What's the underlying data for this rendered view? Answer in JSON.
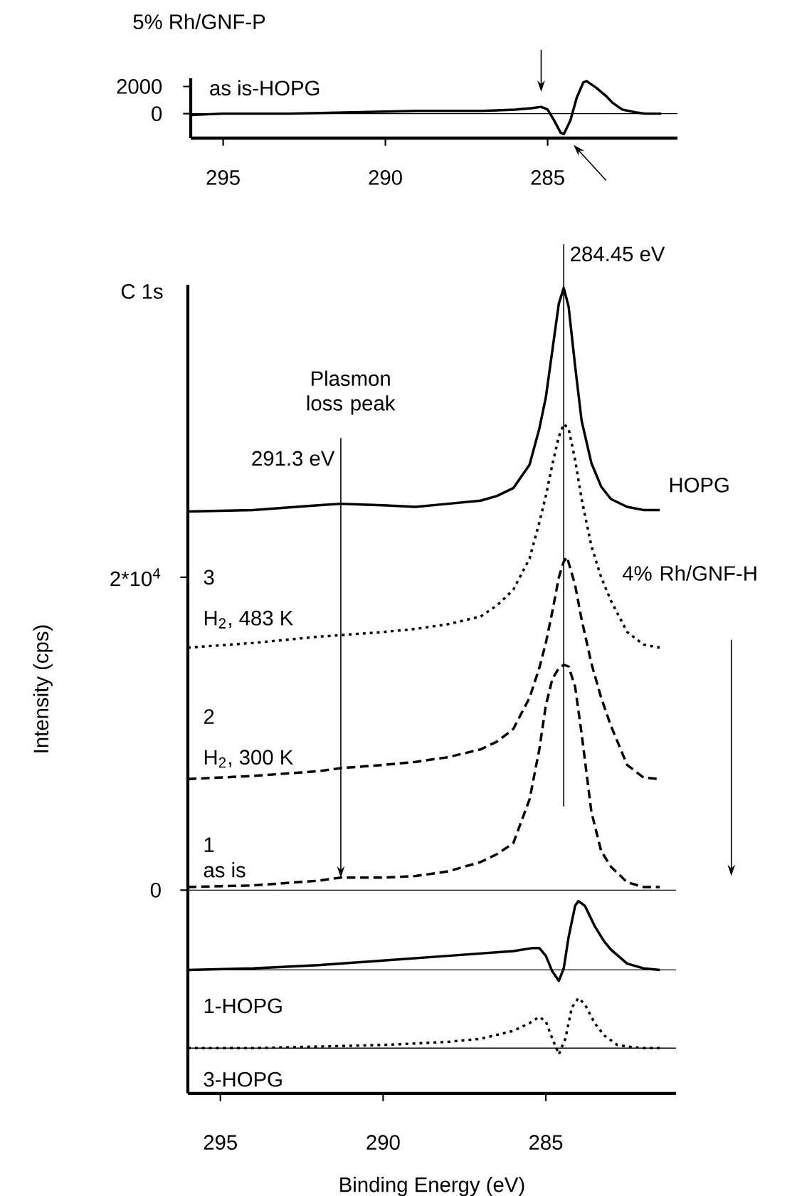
{
  "chart_data": [
    {
      "type": "line",
      "title": "5% Rh/GNF-P",
      "xlim": [
        296,
        281
      ],
      "ylim": [
        -1800,
        2600
      ],
      "xticks": [
        295,
        290,
        285
      ],
      "yticks": [
        0,
        2000
      ],
      "marker": "none",
      "series": [
        {
          "name": "as is-HOPG",
          "color": "#000000",
          "line_style": "solid",
          "x": [
            296,
            295,
            293,
            291,
            289,
            287,
            286,
            285.5,
            285.2,
            285,
            284.8,
            284.6,
            284.5,
            284.3,
            284.1,
            283.9,
            283.8,
            283.5,
            283.2,
            283,
            282.7,
            282.3,
            282,
            281.5
          ],
          "values": [
            -100,
            0,
            0,
            100,
            200,
            200,
            300,
            400,
            500,
            300,
            -500,
            -1400,
            -1500,
            -500,
            1200,
            2300,
            2400,
            1900,
            1300,
            800,
            300,
            100,
            0,
            0
          ]
        }
      ],
      "ref_lines": [
        {
          "axis": "y",
          "value": 0,
          "color": "#000000"
        }
      ]
    },
    {
      "type": "line",
      "title": "C 1s",
      "xlabel": "Binding Energy (eV)",
      "ylabel": "Intensity (cps)",
      "xlim": [
        296,
        281
      ],
      "ylim": [
        -13000,
        38700
      ],
      "xticks": [
        295,
        290,
        285
      ],
      "yticks": [
        0,
        {
          "value": 20000,
          "label": "2*10$^{4}$"
        }
      ],
      "marker": "none",
      "series": [
        {
          "name": "HOPG",
          "color": "#000000",
          "line_style": "solid",
          "x": [
            296,
            294,
            292,
            291.3,
            290,
            289,
            288,
            287,
            286.5,
            286,
            285.5,
            285.2,
            285,
            284.8,
            284.6,
            284.45,
            284.3,
            284.1,
            283.9,
            283.6,
            283.3,
            283,
            282.5,
            282,
            281.5
          ],
          "values": [
            24200,
            24300,
            24600,
            24700,
            24600,
            24500,
            24700,
            24900,
            25200,
            25700,
            27200,
            29500,
            31500,
            34500,
            37500,
            38500,
            37300,
            33500,
            30000,
            27300,
            25800,
            25000,
            24500,
            24300,
            24300
          ]
        },
        {
          "name": "3",
          "color": "#000000",
          "line_style": "dotted",
          "x": [
            296,
            294,
            292,
            291.3,
            290,
            289,
            288,
            287,
            286.5,
            286,
            285.5,
            285.2,
            285,
            284.8,
            284.6,
            284.45,
            284.3,
            284.1,
            283.9,
            283.6,
            283.3,
            283,
            282.5,
            282,
            281.5
          ],
          "values": [
            15500,
            15800,
            16200,
            16300,
            16500,
            16700,
            17000,
            17500,
            18200,
            19200,
            21200,
            23500,
            25200,
            27200,
            29000,
            29800,
            29500,
            27500,
            25000,
            22000,
            20000,
            18500,
            16500,
            15700,
            15500
          ]
        },
        {
          "name": "2",
          "color": "#000000",
          "line_style": "dashed",
          "x": [
            296,
            294,
            292,
            291.3,
            290,
            289,
            288,
            287,
            286.5,
            286,
            285.5,
            285.2,
            285,
            284.8,
            284.6,
            284.45,
            284.35,
            284.1,
            283.9,
            283.6,
            283.3,
            283,
            282.5,
            282,
            281.5
          ],
          "values": [
            7100,
            7300,
            7600,
            7800,
            8000,
            8200,
            8500,
            9000,
            9500,
            10300,
            12300,
            14200,
            15800,
            17800,
            20000,
            21000,
            21300,
            19500,
            17300,
            14500,
            12300,
            10500,
            8000,
            7200,
            7100
          ]
        },
        {
          "name": "1",
          "color": "#000000",
          "line_style": "dashed",
          "x": [
            296,
            294,
            292,
            291.3,
            290,
            289,
            288,
            287,
            286.5,
            286,
            285.5,
            285.2,
            285,
            284.8,
            284.6,
            284.45,
            284.3,
            284.1,
            283.9,
            283.6,
            283.3,
            283,
            282.5,
            282,
            281.5
          ],
          "values": [
            200,
            300,
            600,
            800,
            800,
            900,
            1200,
            1800,
            2300,
            3000,
            5800,
            9000,
            11800,
            13500,
            14200,
            14400,
            14300,
            13000,
            10000,
            5000,
            2500,
            1500,
            500,
            200,
            200
          ]
        },
        {
          "name": "1-HOPG",
          "color": "#000000",
          "line_style": "solid",
          "x": [
            296,
            294,
            292,
            290,
            288,
            286,
            285.4,
            285.2,
            285,
            284.8,
            284.6,
            284.45,
            284.3,
            284.1,
            284,
            283.8,
            283.5,
            283.2,
            283,
            282.5,
            282,
            281.5
          ],
          "values": [
            -5100,
            -5000,
            -4800,
            -4500,
            -4200,
            -3900,
            -3700,
            -3700,
            -4200,
            -5200,
            -5800,
            -5000,
            -3000,
            -1000,
            -700,
            -1000,
            -2300,
            -3300,
            -3800,
            -4700,
            -5000,
            -5100
          ]
        },
        {
          "name": "3-HOPG",
          "color": "#000000",
          "line_style": "dotted",
          "x": [
            296,
            294,
            292,
            290,
            288,
            287,
            286,
            285.5,
            285.2,
            285,
            284.8,
            284.6,
            284.4,
            284.2,
            284,
            283.8,
            283.5,
            283.2,
            282.8,
            282.5,
            282,
            281.5
          ],
          "values": [
            -10100,
            -10100,
            -10000,
            -9900,
            -9700,
            -9500,
            -9000,
            -8500,
            -8100,
            -8400,
            -9500,
            -10500,
            -9500,
            -7500,
            -6900,
            -7300,
            -8500,
            -9300,
            -9900,
            -10000,
            -10100,
            -10100
          ]
        }
      ],
      "ref_lines": [
        {
          "axis": "y",
          "value": 0,
          "color": "#000000"
        },
        {
          "axis": "y",
          "value": -5100,
          "color": "#000000"
        },
        {
          "axis": "y",
          "value": -10100,
          "color": "#000000"
        },
        {
          "axis": "x",
          "value": 284.45,
          "label": "284.45 eV",
          "color": "#000000"
        }
      ],
      "annotations": [
        {
          "text": "291.3 eV",
          "x": 291.3,
          "y": 800
        },
        "Plasmon loss peak",
        "H$_{2}$, 483 K",
        "H$_{2}$, 300 K",
        "as is",
        "4% Rh/GNF-H"
      ]
    }
  ]
}
